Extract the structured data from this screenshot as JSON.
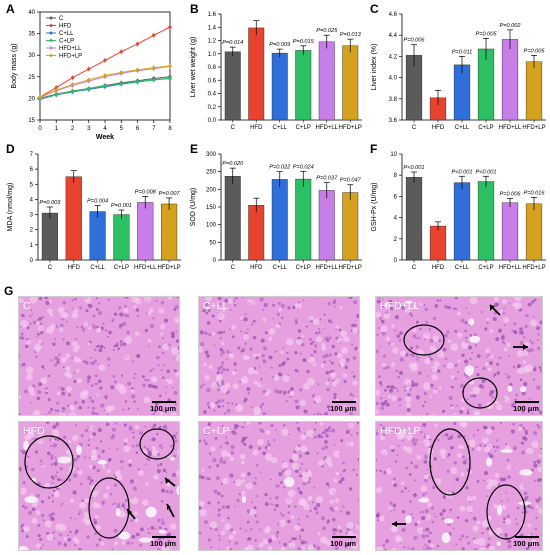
{
  "colors": {
    "C": "#5b5b5b",
    "HFD": "#e8432f",
    "C+LL": "#2f6fd9",
    "C+LP": "#2cbf63",
    "HFD+LL": "#c77ee8",
    "HFD+LP": "#d4a21c"
  },
  "groups": [
    "C",
    "HFD",
    "C+LL",
    "C+LP",
    "HFD+LL",
    "HFD+LP"
  ],
  "chart_data": [
    {
      "panel": "A",
      "type": "line",
      "xlabel": "Week",
      "ylabel": "Body mass (g)",
      "x": [
        0,
        1,
        2,
        3,
        4,
        5,
        6,
        7,
        8
      ],
      "xlim": [
        0,
        8
      ],
      "ylim": [
        15,
        40
      ],
      "xticks": [
        "0",
        "1",
        "2",
        "3",
        "4",
        "5",
        "6",
        "7",
        "8"
      ],
      "yticks": [
        "15",
        "20",
        "25",
        "30",
        "35",
        "40"
      ],
      "legend": [
        "C",
        "HFD",
        "C+LL",
        "C+LP",
        "HFD+LL",
        "HFD+LP"
      ],
      "series": [
        {
          "name": "C",
          "values": [
            20.0,
            21.0,
            21.7,
            22.3,
            23.0,
            23.6,
            24.1,
            24.6,
            25.0
          ]
        },
        {
          "name": "HFD",
          "values": [
            20.3,
            22.5,
            24.8,
            26.8,
            28.8,
            30.8,
            32.6,
            34.6,
            36.5
          ]
        },
        {
          "name": "C+LL",
          "values": [
            19.8,
            20.8,
            21.5,
            22.1,
            22.7,
            23.3,
            23.8,
            24.3,
            24.6
          ]
        },
        {
          "name": "C+LP",
          "values": [
            19.9,
            20.9,
            21.6,
            22.3,
            22.9,
            23.4,
            23.9,
            24.3,
            24.7
          ]
        },
        {
          "name": "HFD+LL",
          "values": [
            20.2,
            21.8,
            23.0,
            24.0,
            25.0,
            25.8,
            26.4,
            26.9,
            27.4
          ]
        },
        {
          "name": "HFD+LP",
          "values": [
            20.3,
            21.9,
            23.2,
            24.3,
            25.3,
            26.0,
            26.6,
            27.1,
            27.5
          ]
        }
      ]
    },
    {
      "panel": "B",
      "type": "bar",
      "ylabel": "Liver wet weight (g)",
      "ylim": [
        0,
        1.6
      ],
      "yticks": [
        "0.0",
        "0.2",
        "0.4",
        "0.6",
        "0.8",
        "1.0",
        "1.2",
        "1.4",
        "1.6"
      ],
      "categories": [
        "C",
        "HFD",
        "C+LL",
        "C+LP",
        "HFD+LL",
        "HFD+LP"
      ],
      "values": [
        1.03,
        1.39,
        1.01,
        1.05,
        1.18,
        1.12
      ],
      "errors": [
        0.07,
        0.11,
        0.06,
        0.07,
        0.1,
        0.1
      ],
      "pvalues": [
        "P=0.014",
        "",
        "P=0.009",
        "P=0.015",
        "P=0.025",
        "P=0.013"
      ]
    },
    {
      "panel": "C",
      "type": "bar",
      "ylabel": "Liver index (%)",
      "ylim": [
        3.6,
        4.6
      ],
      "yticks": [
        "3.6",
        "3.8",
        "4.0",
        "4.2",
        "4.4",
        "4.6"
      ],
      "categories": [
        "C",
        "HFD",
        "C+LL",
        "C+LP",
        "HFD+LL",
        "HFD+LP"
      ],
      "values": [
        4.21,
        3.81,
        4.12,
        4.27,
        4.36,
        4.15
      ],
      "errors": [
        0.1,
        0.07,
        0.08,
        0.1,
        0.09,
        0.06
      ],
      "pvalues": [
        "P=0.006",
        "",
        "P=0.011",
        "P=0.005",
        "P=0.002",
        "P=0.005"
      ]
    },
    {
      "panel": "D",
      "type": "bar",
      "ylabel": "MDA (nmol/mg)",
      "ylim": [
        0,
        7
      ],
      "yticks": [
        "0",
        "1",
        "2",
        "3",
        "4",
        "5",
        "6",
        "7"
      ],
      "categories": [
        "C",
        "HFD",
        "C+LL",
        "C+LP",
        "HFD+LL",
        "HFD+LP"
      ],
      "values": [
        3.1,
        5.5,
        3.2,
        3.0,
        3.8,
        3.7
      ],
      "errors": [
        0.4,
        0.4,
        0.4,
        0.3,
        0.4,
        0.4
      ],
      "pvalues": [
        "P=0.003",
        "",
        "P=0.004",
        "P=0.001",
        "P=0.008",
        "P=0.007"
      ]
    },
    {
      "panel": "E",
      "type": "bar",
      "ylabel": "SOD (U/mg)",
      "ylim": [
        0,
        300
      ],
      "yticks": [
        "0",
        "50",
        "100",
        "150",
        "200",
        "250",
        "300"
      ],
      "categories": [
        "C",
        "HFD",
        "C+LL",
        "C+LP",
        "HFD+LL",
        "HFD+LP"
      ],
      "values": [
        237,
        155,
        228,
        229,
        197,
        191
      ],
      "errors": [
        23,
        20,
        22,
        22,
        22,
        22
      ],
      "pvalues": [
        "P=0.020",
        "",
        "P=0.022",
        "P=0.024",
        "P=0.037",
        "P=0.047"
      ]
    },
    {
      "panel": "F",
      "type": "bar",
      "ylabel": "GSH-Px (U/mg)",
      "ylim": [
        0,
        10
      ],
      "yticks": [
        "0",
        "2",
        "4",
        "6",
        "8",
        "10"
      ],
      "categories": [
        "C",
        "HFD",
        "C+LL",
        "C+LP",
        "HFD+LL",
        "HFD+LP"
      ],
      "values": [
        7.8,
        3.2,
        7.3,
        7.4,
        5.4,
        5.3
      ],
      "errors": [
        0.5,
        0.4,
        0.6,
        0.5,
        0.4,
        0.6
      ],
      "pvalues": [
        "P<0.001",
        "",
        "P<0.001",
        "P<0.001",
        "P=0.006",
        "P=0.016"
      ]
    }
  ],
  "panels": {
    "A": "A",
    "B": "B",
    "C": "C",
    "D": "D",
    "E": "E",
    "F": "F",
    "G": "G"
  },
  "micrographs": [
    {
      "label": "C",
      "scale": "100 μm"
    },
    {
      "label": "C+LL",
      "scale": "100 μm"
    },
    {
      "label": "HFD+LL",
      "scale": "100 μm"
    },
    {
      "label": "HFD",
      "scale": "100 μm"
    },
    {
      "label": "C+LP",
      "scale": "100 μm"
    },
    {
      "label": "HFD+LP",
      "scale": "100 μm"
    }
  ]
}
